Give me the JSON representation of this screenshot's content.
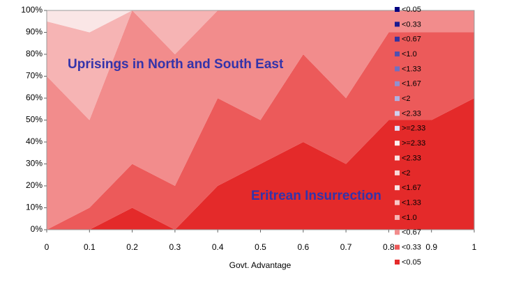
{
  "chart_data": {
    "type": "stacked_area",
    "x_label": "Govt. Advantage",
    "annotations": [
      "Uprisings in North and South East",
      "Eritrean Insurrection"
    ],
    "x": [
      0,
      0.1,
      0.2,
      0.3,
      0.4,
      0.5,
      0.6,
      0.7,
      0.8,
      0.9,
      1
    ],
    "xlim": [
      0,
      1
    ],
    "xticks": [
      0,
      0.1,
      0.2,
      0.3,
      0.4,
      0.5,
      0.6,
      0.7,
      0.8,
      0.9,
      1
    ],
    "ylim": [
      0,
      100
    ],
    "yticks": [
      {
        "value": 0,
        "label": "0%"
      },
      {
        "value": 10,
        "label": "10%"
      },
      {
        "value": 20,
        "label": "20%"
      },
      {
        "value": 30,
        "label": "30%"
      },
      {
        "value": 40,
        "label": "40%"
      },
      {
        "value": 50,
        "label": "50%"
      },
      {
        "value": 60,
        "label": "60%"
      },
      {
        "value": 70,
        "label": "70%"
      },
      {
        "value": 80,
        "label": "80%"
      },
      {
        "value": 90,
        "label": "90%"
      },
      {
        "value": 100,
        "label": "100%"
      }
    ],
    "legend_position": "right",
    "series": [
      {
        "name": "<0.05",
        "color": "#000080",
        "values": [
          0,
          0,
          0,
          0,
          0,
          0,
          0,
          0,
          0,
          0,
          0
        ]
      },
      {
        "name": "<0.33",
        "color": "#1a1a90",
        "values": [
          0,
          0,
          0,
          0,
          0,
          0,
          0,
          0,
          0,
          0,
          0
        ]
      },
      {
        "name": "<0.67",
        "color": "#3333a0",
        "values": [
          0,
          0,
          0,
          0,
          0,
          0,
          0,
          0,
          0,
          0,
          0
        ]
      },
      {
        "name": "<1.0",
        "color": "#5050b0",
        "values": [
          0,
          0,
          0,
          0,
          0,
          0,
          0,
          0,
          0,
          0,
          0
        ]
      },
      {
        "name": "<1.33",
        "color": "#7070c0",
        "values": [
          0,
          0,
          0,
          0,
          0,
          0,
          0,
          0,
          0,
          0,
          0
        ]
      },
      {
        "name": "<1.67",
        "color": "#9090d0",
        "values": [
          0,
          0,
          0,
          0,
          0,
          0,
          0,
          0,
          0,
          0,
          0
        ]
      },
      {
        "name": "<2",
        "color": "#b0b0e0",
        "values": [
          0,
          0,
          0,
          0,
          0,
          0,
          0,
          0,
          0,
          0,
          0
        ]
      },
      {
        "name": "<2.33",
        "color": "#d0d0f0",
        "values": [
          0,
          0,
          0,
          0,
          0,
          0,
          0,
          0,
          0,
          0,
          0
        ]
      },
      {
        "name": ">=2.33",
        "color": "#e0e0f8",
        "values": [
          0,
          0,
          0,
          0,
          0,
          0,
          0,
          0,
          0,
          0,
          0
        ]
      },
      {
        "name": ">=2.33",
        "color": "#fdf0f0",
        "values": [
          0,
          0,
          0,
          0,
          0,
          0,
          0,
          0,
          0,
          0,
          0
        ]
      },
      {
        "name": "<2.33",
        "color": "#fbe4e4",
        "values": [
          0,
          0,
          0,
          0,
          0,
          0,
          0,
          0,
          0,
          0,
          0
        ]
      },
      {
        "name": "<2",
        "color": "#f9d8d8",
        "values": [
          0,
          0,
          0,
          0,
          0,
          0,
          0,
          0,
          0,
          0,
          0
        ]
      },
      {
        "name": "<1.67",
        "color": "#fae6e6",
        "values": [
          5,
          10,
          0,
          0,
          0,
          0,
          0,
          0,
          0,
          0,
          0
        ]
      },
      {
        "name": "<1.33",
        "color": "#f8c6c6",
        "values": [
          0,
          0,
          0,
          0,
          0,
          0,
          0,
          0,
          0,
          0,
          0
        ]
      },
      {
        "name": "<1.0",
        "color": "#f6b4b4",
        "values": [
          25,
          40,
          0,
          20,
          0,
          0,
          0,
          0,
          0,
          0,
          0
        ]
      },
      {
        "name": "<0.67",
        "color": "#f28c8c",
        "values": [
          70,
          40,
          70,
          60,
          40,
          50,
          20,
          40,
          10,
          10,
          10
        ]
      },
      {
        "name": "<0.33",
        "color": "#ec5a5a",
        "values": [
          0,
          10,
          20,
          20,
          40,
          20,
          40,
          30,
          40,
          40,
          30
        ]
      },
      {
        "name": "<0.05",
        "color": "#e42a2a",
        "values": [
          0,
          0,
          10,
          0,
          20,
          30,
          40,
          30,
          50,
          50,
          60
        ]
      }
    ]
  }
}
